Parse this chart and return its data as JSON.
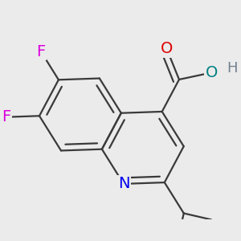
{
  "background_color": "#ebebeb",
  "atom_colors": {
    "C": "#3a3a3a",
    "N": "#0000ee",
    "O_carbonyl": "#dd0000",
    "O_hydroxyl": "#008080",
    "F": "#dd00dd",
    "H": "#708090"
  },
  "bond_color": "#3a3a3a",
  "bond_width": 1.6,
  "font_size": 14
}
